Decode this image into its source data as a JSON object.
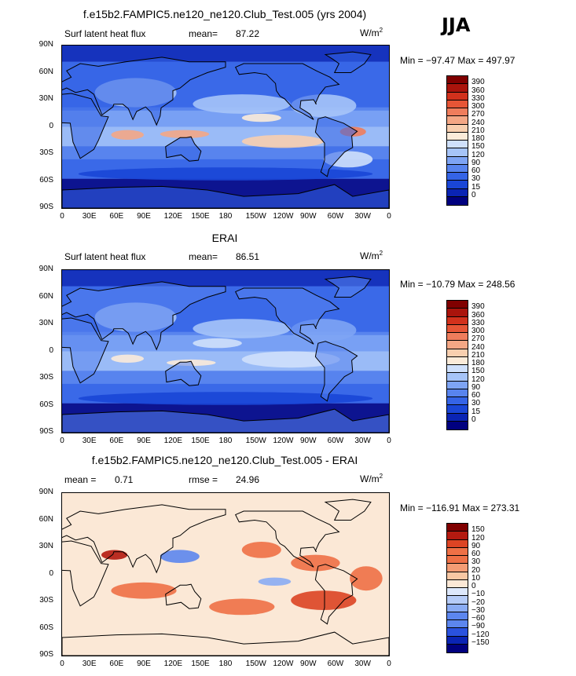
{
  "season": "JJA",
  "units_base": "W/m",
  "units_exp": "2",
  "x_ticks": [
    "0",
    "30E",
    "60E",
    "90E",
    "120E",
    "150E",
    "180",
    "150W",
    "120W",
    "90W",
    "60W",
    "30W",
    "0"
  ],
  "y_ticks": [
    "90N",
    "60N",
    "30N",
    "0",
    "30S",
    "60S",
    "90S"
  ],
  "colors": {
    "abs": [
      "#00007f",
      "#0a24b4",
      "#1a46d6",
      "#3564e6",
      "#5884ee",
      "#7ea4f4",
      "#a6c4f8",
      "#cfe0fb",
      "#fbebd9",
      "#f8cfaf",
      "#f4a785",
      "#ef7d5c",
      "#e65536",
      "#d2311c",
      "#aa140c",
      "#800000"
    ],
    "diff": [
      "#00007f",
      "#0a24b4",
      "#2a52de",
      "#5c86ee",
      "#8aacf4",
      "#b6ccf8",
      "#dde8fc",
      "#fbe8d6",
      "#f8c7a3",
      "#f49c74",
      "#ee7046",
      "#dc4424",
      "#b41a10",
      "#800000"
    ]
  },
  "panels": [
    {
      "id": "model",
      "title": "f.e15b2.FAMPIC5.ne120_ne120.Club_Test.005 (yrs 2004)",
      "left_label": "Surf latent heat flux",
      "stat1_label": "mean=",
      "stat1_value": "87.22",
      "stat2_label": "",
      "stat2_value": "",
      "minmax": "Min = −97.47 Max = 497.97",
      "levels": [
        "390",
        "360",
        "330",
        "300",
        "270",
        "240",
        "210",
        "180",
        "150",
        "120",
        "90",
        "60",
        "30",
        "15",
        "0"
      ]
    },
    {
      "id": "obs",
      "title": "ERAI",
      "left_label": "Surf latent heat flux",
      "stat1_label": "mean=",
      "stat1_value": "86.51",
      "stat2_label": "",
      "stat2_value": "",
      "minmax": "Min = −10.79 Max = 248.56",
      "levels": [
        "390",
        "360",
        "330",
        "300",
        "270",
        "240",
        "210",
        "180",
        "150",
        "120",
        "90",
        "60",
        "30",
        "15",
        "0"
      ]
    },
    {
      "id": "diff",
      "title": "f.e15b2.FAMPIC5.ne120_ne120.Club_Test.005 - ERAI",
      "left_label": "",
      "stat1_label": "mean =",
      "stat1_value": "0.71",
      "stat2_label": "rmse =",
      "stat2_value": "24.96",
      "minmax": "Min = −116.91 Max = 273.31",
      "levels": [
        "150",
        "120",
        "90",
        "60",
        "30",
        "20",
        "10",
        "0",
        "−10",
        "−20",
        "−30",
        "−60",
        "−90",
        "−120",
        "−150"
      ]
    }
  ]
}
